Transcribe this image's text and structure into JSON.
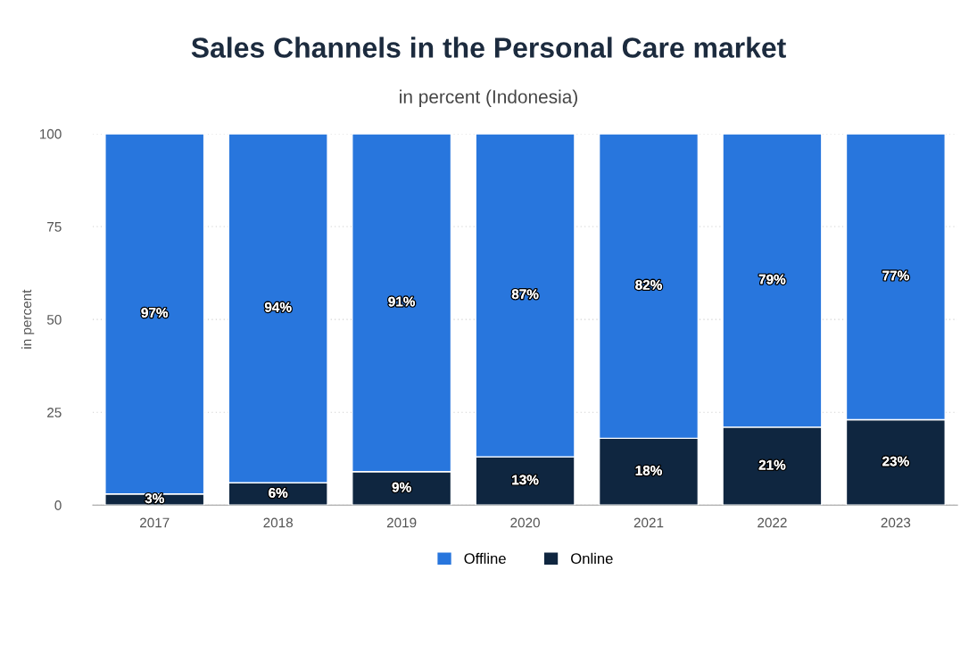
{
  "chart_data": {
    "type": "bar",
    "title": "Sales Channels in the Personal Care market",
    "subtitle": "in percent (Indonesia)",
    "ylabel": "in percent",
    "categories": [
      "2017",
      "2018",
      "2019",
      "2020",
      "2021",
      "2022",
      "2023"
    ],
    "stacked": true,
    "series": [
      {
        "name": "Online",
        "color": "#0f2640",
        "values": [
          3,
          6,
          9,
          13,
          18,
          21,
          23
        ],
        "value_labels": [
          "3%",
          "6%",
          "9%",
          "13%",
          "18%",
          "21%",
          "23%"
        ]
      },
      {
        "name": "Offline",
        "color": "#2876dd",
        "values": [
          97,
          94,
          91,
          87,
          82,
          79,
          77
        ],
        "value_labels": [
          "97%",
          "94%",
          "91%",
          "87%",
          "82%",
          "79%",
          "77%"
        ]
      }
    ],
    "ylim": [
      0,
      100
    ],
    "yticks": [
      0,
      25,
      50,
      75,
      100
    ],
    "grid": "y",
    "legend": "bottom"
  }
}
